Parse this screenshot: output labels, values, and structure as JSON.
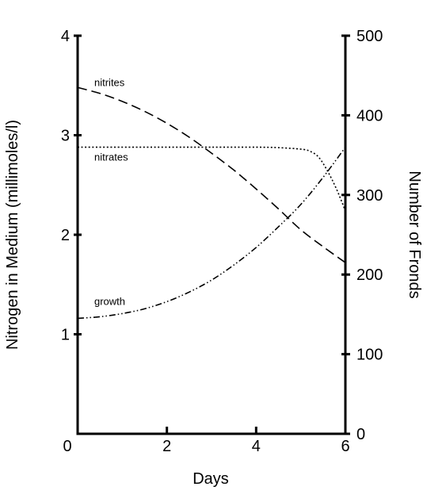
{
  "chart_data": {
    "type": "line",
    "xlabel": "Days",
    "ylabel_left": "Nitrogen in Medium (millimoles/l)",
    "ylabel_right": "Number of Fronds",
    "xlim": [
      0,
      6
    ],
    "ylim_left": [
      0,
      4
    ],
    "ylim_right": [
      0,
      500
    ],
    "x_ticks": [
      0,
      2,
      4,
      6
    ],
    "y_left_ticks": [
      1,
      2,
      3,
      4
    ],
    "y_right_ticks": [
      0,
      100,
      200,
      300,
      400,
      500
    ],
    "grid": false,
    "series": [
      {
        "name": "nitrites",
        "axis": "left",
        "style": "dashed",
        "x": [
          0,
          0.5,
          1,
          1.5,
          2,
          2.5,
          3,
          3.5,
          4,
          4.5,
          5,
          5.5,
          6
        ],
        "y": [
          3.48,
          3.42,
          3.34,
          3.24,
          3.12,
          2.98,
          2.82,
          2.65,
          2.46,
          2.26,
          2.05,
          1.88,
          1.72
        ]
      },
      {
        "name": "nitrates",
        "axis": "left",
        "style": "dotted",
        "x": [
          0,
          1,
          2,
          3,
          4,
          4.5,
          5,
          5.2,
          5.4,
          5.6,
          5.8,
          6
        ],
        "y": [
          2.88,
          2.88,
          2.88,
          2.88,
          2.88,
          2.875,
          2.86,
          2.84,
          2.78,
          2.64,
          2.46,
          2.24
        ]
      },
      {
        "name": "growth",
        "axis": "right",
        "style": "dash-dot-dot",
        "x": [
          0,
          0.5,
          1,
          1.5,
          2,
          2.5,
          3,
          3.5,
          4,
          4.5,
          5,
          5.5,
          6
        ],
        "y": [
          145,
          147,
          151,
          157,
          166,
          178,
          193,
          212,
          234,
          260,
          288,
          322,
          360
        ]
      }
    ]
  }
}
